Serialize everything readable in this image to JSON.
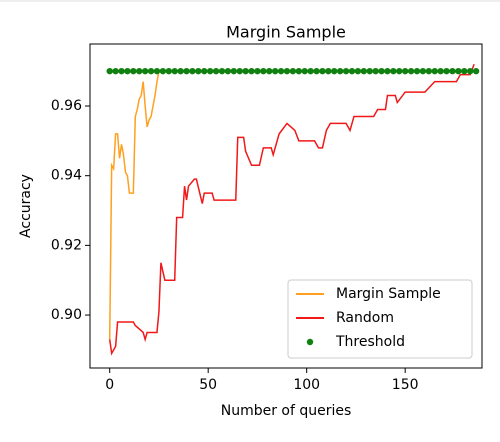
{
  "chart_data": {
    "type": "line",
    "title": "Margin Sample",
    "xlabel": "Number of queries",
    "ylabel": "Accuracy",
    "xlim": [
      -10,
      189
    ],
    "ylim": [
      0.8848,
      0.9778
    ],
    "xticks": [
      0,
      50,
      100,
      150
    ],
    "yticks": [
      {
        "value": 0.9,
        "label": "0.90"
      },
      0.92,
      0.94,
      0.96
    ],
    "legend": "lower right",
    "series": [
      {
        "name": "Margin Sample",
        "type": "line",
        "color": "#ffa020",
        "x": [
          0,
          1,
          2,
          3,
          4,
          5,
          6,
          7,
          8,
          9,
          10,
          11,
          12,
          13,
          14,
          15,
          16,
          17,
          18,
          19,
          20,
          21,
          22,
          23,
          24,
          25
        ],
        "values": [
          0.893,
          0.943,
          0.942,
          0.952,
          0.952,
          0.945,
          0.949,
          0.946,
          0.941,
          0.94,
          0.935,
          0.935,
          0.935,
          0.957,
          0.959,
          0.962,
          0.963,
          0.967,
          0.96,
          0.954,
          0.956,
          0.957,
          0.96,
          0.963,
          0.967,
          0.97
        ]
      },
      {
        "name": "Random",
        "type": "line",
        "color": "#f01818",
        "x": [
          0,
          1,
          2,
          3,
          4,
          12,
          13,
          17,
          18,
          19,
          24,
          25,
          26,
          28,
          33,
          34,
          37,
          38,
          39,
          40,
          43,
          44,
          47,
          48,
          52,
          53,
          64,
          65,
          68,
          69,
          72,
          76,
          78,
          82,
          83,
          86,
          90,
          94,
          96,
          104,
          106,
          108,
          110,
          112,
          120,
          122,
          124,
          134,
          136,
          140,
          141,
          145,
          146,
          150,
          160,
          165,
          176,
          178,
          183,
          185
        ],
        "values": [
          0.893,
          0.889,
          0.89,
          0.891,
          0.898,
          0.898,
          0.897,
          0.895,
          0.893,
          0.895,
          0.895,
          0.901,
          0.915,
          0.91,
          0.91,
          0.928,
          0.928,
          0.937,
          0.933,
          0.937,
          0.939,
          0.939,
          0.932,
          0.935,
          0.935,
          0.933,
          0.933,
          0.951,
          0.951,
          0.947,
          0.943,
          0.943,
          0.948,
          0.948,
          0.946,
          0.952,
          0.955,
          0.953,
          0.95,
          0.95,
          0.948,
          0.948,
          0.953,
          0.955,
          0.955,
          0.953,
          0.957,
          0.957,
          0.959,
          0.959,
          0.963,
          0.963,
          0.961,
          0.964,
          0.964,
          0.967,
          0.967,
          0.969,
          0.969,
          0.972
        ]
      },
      {
        "name": "Threshold",
        "type": "scatter",
        "color": "#108010",
        "x": [
          0,
          3,
          6,
          9,
          12,
          15,
          18,
          21,
          24,
          27,
          30,
          33,
          36,
          39,
          42,
          45,
          48,
          51,
          54,
          57,
          60,
          63,
          66,
          69,
          72,
          75,
          78,
          81,
          84,
          87,
          90,
          93,
          96,
          99,
          102,
          105,
          108,
          111,
          114,
          117,
          120,
          123,
          126,
          129,
          132,
          135,
          138,
          141,
          144,
          147,
          150,
          153,
          156,
          159,
          162,
          165,
          168,
          171,
          174,
          177,
          180,
          183,
          186
        ],
        "values": [
          0.97,
          0.97,
          0.97,
          0.97,
          0.97,
          0.97,
          0.97,
          0.97,
          0.97,
          0.97,
          0.97,
          0.97,
          0.97,
          0.97,
          0.97,
          0.97,
          0.97,
          0.97,
          0.97,
          0.97,
          0.97,
          0.97,
          0.97,
          0.97,
          0.97,
          0.97,
          0.97,
          0.97,
          0.97,
          0.97,
          0.97,
          0.97,
          0.97,
          0.97,
          0.97,
          0.97,
          0.97,
          0.97,
          0.97,
          0.97,
          0.97,
          0.97,
          0.97,
          0.97,
          0.97,
          0.97,
          0.97,
          0.97,
          0.97,
          0.97,
          0.97,
          0.97,
          0.97,
          0.97,
          0.97,
          0.97,
          0.97,
          0.97,
          0.97,
          0.97,
          0.97,
          0.97,
          0.97
        ]
      }
    ]
  }
}
